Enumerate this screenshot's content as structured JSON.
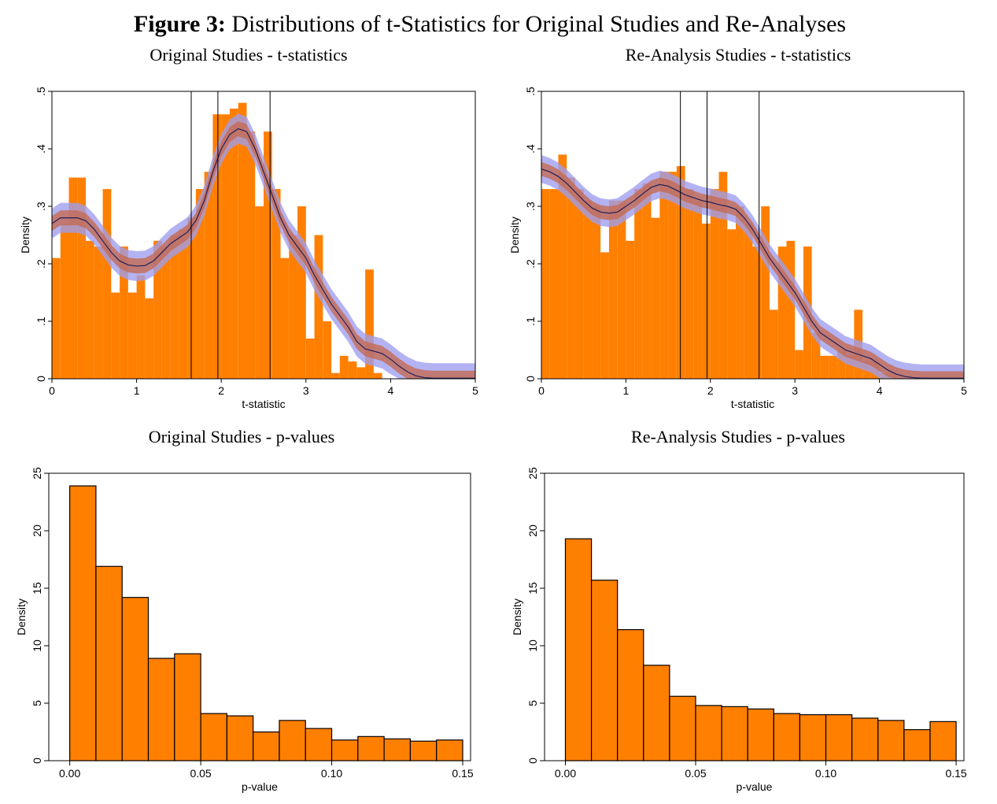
{
  "figure": {
    "label": "Figure 3:",
    "title": "Distributions of t-Statistics for Original Studies and Re-Analyses"
  },
  "colors": {
    "bar": "#ff7f00",
    "ci_outer": "#9d9df0",
    "ci_inner": "#c46a52",
    "kde_line": "#20205a",
    "axis": "#000000"
  },
  "chart_data": [
    {
      "type": "bar",
      "subtype": "histogram-with-kde",
      "title": "Original Studies - t-statistics",
      "xlabel": "t-statistic",
      "ylabel": "Density",
      "xlim": [
        0,
        5
      ],
      "ylim": [
        0,
        0.5
      ],
      "xticks": [
        "0",
        "1",
        "2",
        "3",
        "4",
        "5"
      ],
      "yticks": [
        "0",
        ".1",
        ".2",
        ".3",
        ".4",
        ".5"
      ],
      "bin_width": 0.1,
      "bin_start": 0,
      "values": [
        0.21,
        0.27,
        0.35,
        0.35,
        0.24,
        0.23,
        0.33,
        0.15,
        0.23,
        0.15,
        0.18,
        0.14,
        0.24,
        0.23,
        0.25,
        0.26,
        0.28,
        0.33,
        0.36,
        0.46,
        0.46,
        0.47,
        0.48,
        0.43,
        0.3,
        0.43,
        0.33,
        0.21,
        0.25,
        0.3,
        0.07,
        0.25,
        0.1,
        0.01,
        0.04,
        0.03,
        0.02,
        0.19,
        0.01,
        0.0,
        0.0,
        0.0,
        0.0,
        0.0,
        0.0,
        0.0,
        0.0,
        0.0,
        0.0,
        0.0
      ],
      "vlines": [
        1.645,
        1.96,
        2.576
      ],
      "kde": {
        "x": [
          0,
          0.1,
          0.2,
          0.3,
          0.4,
          0.5,
          0.6,
          0.7,
          0.8,
          0.9,
          1.0,
          1.1,
          1.2,
          1.3,
          1.4,
          1.5,
          1.6,
          1.7,
          1.8,
          1.9,
          2.0,
          2.1,
          2.2,
          2.3,
          2.4,
          2.5,
          2.6,
          2.7,
          2.8,
          2.9,
          3.0,
          3.1,
          3.2,
          3.3,
          3.4,
          3.5,
          3.6,
          3.7,
          3.8,
          3.9,
          4.0,
          4.1,
          4.2,
          4.3,
          4.4,
          4.5,
          4.6,
          4.7,
          4.8,
          4.9,
          5.0
        ],
        "y": [
          0.27,
          0.28,
          0.28,
          0.28,
          0.275,
          0.26,
          0.24,
          0.22,
          0.205,
          0.198,
          0.196,
          0.197,
          0.205,
          0.22,
          0.235,
          0.245,
          0.255,
          0.275,
          0.31,
          0.36,
          0.4,
          0.425,
          0.435,
          0.43,
          0.4,
          0.36,
          0.32,
          0.28,
          0.25,
          0.23,
          0.21,
          0.18,
          0.155,
          0.13,
          0.11,
          0.09,
          0.065,
          0.052,
          0.048,
          0.044,
          0.034,
          0.022,
          0.012,
          0.005,
          0.002,
          0.001,
          0.001,
          0.001,
          0.001,
          0.001,
          0.001
        ],
        "inner_halfwidth": 0.013,
        "outer_halfwidth": 0.026
      }
    },
    {
      "type": "bar",
      "subtype": "histogram-with-kde",
      "title": "Re-Analysis Studies - t-statistics",
      "xlabel": "t-statistic",
      "ylabel": "Density",
      "xlim": [
        0,
        5
      ],
      "ylim": [
        0,
        0.5
      ],
      "xticks": [
        "0",
        "1",
        "2",
        "3",
        "4",
        "5"
      ],
      "yticks": [
        "0",
        ".1",
        ".2",
        ".3",
        ".4",
        ".5"
      ],
      "bin_width": 0.1,
      "bin_start": 0,
      "values": [
        0.33,
        0.33,
        0.39,
        0.35,
        0.33,
        0.31,
        0.3,
        0.22,
        0.31,
        0.31,
        0.24,
        0.33,
        0.34,
        0.28,
        0.36,
        0.36,
        0.37,
        0.33,
        0.31,
        0.27,
        0.33,
        0.36,
        0.26,
        0.3,
        0.27,
        0.23,
        0.3,
        0.12,
        0.23,
        0.24,
        0.05,
        0.23,
        0.08,
        0.04,
        0.04,
        0.05,
        0.04,
        0.12,
        0.03,
        0.03,
        0.01,
        0.01,
        0.0,
        0.0,
        0.0,
        0.0,
        0.0,
        0.0,
        0.0,
        0.0
      ],
      "vlines": [
        1.645,
        1.96,
        2.576
      ],
      "kde": {
        "x": [
          0,
          0.1,
          0.2,
          0.3,
          0.4,
          0.5,
          0.6,
          0.7,
          0.8,
          0.9,
          1.0,
          1.1,
          1.2,
          1.3,
          1.4,
          1.5,
          1.6,
          1.7,
          1.8,
          1.9,
          2.0,
          2.1,
          2.2,
          2.3,
          2.4,
          2.5,
          2.6,
          2.7,
          2.8,
          2.9,
          3.0,
          3.1,
          3.2,
          3.3,
          3.4,
          3.5,
          3.6,
          3.7,
          3.8,
          3.9,
          4.0,
          4.1,
          4.2,
          4.3,
          4.4,
          4.5,
          4.6,
          4.7,
          4.8,
          4.9,
          5.0
        ],
        "y": [
          0.365,
          0.36,
          0.352,
          0.34,
          0.325,
          0.31,
          0.297,
          0.29,
          0.288,
          0.29,
          0.3,
          0.31,
          0.322,
          0.333,
          0.338,
          0.335,
          0.328,
          0.32,
          0.315,
          0.31,
          0.307,
          0.303,
          0.3,
          0.295,
          0.28,
          0.26,
          0.235,
          0.21,
          0.19,
          0.17,
          0.15,
          0.125,
          0.1,
          0.08,
          0.07,
          0.06,
          0.05,
          0.045,
          0.04,
          0.035,
          0.025,
          0.015,
          0.008,
          0.004,
          0.002,
          0.001,
          0.001,
          0.001,
          0.001,
          0.001,
          0.001
        ],
        "inner_halfwidth": 0.012,
        "outer_halfwidth": 0.024
      }
    },
    {
      "type": "bar",
      "subtype": "histogram",
      "title": "Original Studies - p-values",
      "xlabel": "p-value",
      "ylabel": "Density",
      "xlim": [
        -0.008,
        0.153
      ],
      "ylim": [
        0,
        25
      ],
      "xticks": [
        "0.00",
        "0.05",
        "0.10",
        "0.15"
      ],
      "xtick_values": [
        0,
        0.05,
        0.1,
        0.15
      ],
      "yticks": [
        "0",
        "5",
        "10",
        "15",
        "20",
        "25"
      ],
      "bin_width": 0.01,
      "bin_start": 0,
      "values": [
        23.9,
        16.9,
        14.2,
        8.9,
        9.3,
        4.1,
        3.9,
        2.5,
        3.5,
        2.8,
        1.8,
        2.1,
        1.9,
        1.7,
        1.8
      ]
    },
    {
      "type": "bar",
      "subtype": "histogram",
      "title": "Re-Analysis Studies - p-values",
      "xlabel": "p-value",
      "ylabel": "Density",
      "xlim": [
        -0.008,
        0.153
      ],
      "ylim": [
        0,
        25
      ],
      "xticks": [
        "0.00",
        "0.05",
        "0.10",
        "0.15"
      ],
      "xtick_values": [
        0,
        0.05,
        0.1,
        0.15
      ],
      "yticks": [
        "0",
        "5",
        "10",
        "15",
        "20",
        "25"
      ],
      "bin_width": 0.01,
      "bin_start": 0,
      "values": [
        19.3,
        15.7,
        11.4,
        8.3,
        5.6,
        4.8,
        4.7,
        4.5,
        4.1,
        4.0,
        4.0,
        3.7,
        3.5,
        2.7,
        3.4
      ]
    }
  ]
}
